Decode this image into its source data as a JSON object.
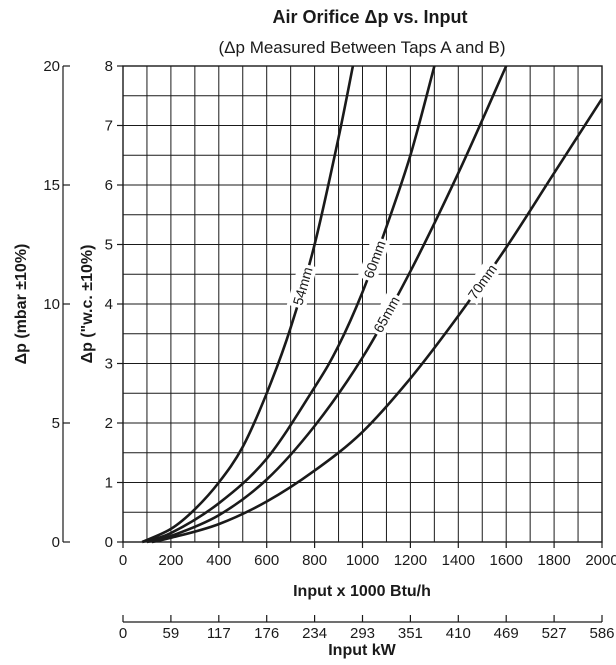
{
  "chart_data": {
    "type": "line",
    "title": "Air Orifice Δp vs. Input",
    "subtitle": "(Δp Measured Between Taps A and B)",
    "xlabel": "Input x 1000 Btu/h",
    "ylabel": "Δp (\"w.c. ±10%)",
    "xlim": [
      0,
      2000
    ],
    "ylim": [
      0,
      8
    ],
    "grid": true,
    "x_ticks": [
      "0",
      "200",
      "400",
      "600",
      "800",
      "1000",
      "1200",
      "1400",
      "1600",
      "1800",
      "2000"
    ],
    "y_ticks": [
      "0",
      "1",
      "2",
      "3",
      "4",
      "5",
      "6",
      "7",
      "8"
    ],
    "secondary_y": {
      "label": "Δp (mbar ±10%)",
      "range": [
        0,
        20
      ],
      "ticks": [
        "0",
        "5",
        "10",
        "15",
        "20"
      ]
    },
    "secondary_x": {
      "label": "Input kW",
      "ticks": [
        "0",
        "59",
        "117",
        "176",
        "234",
        "293",
        "351",
        "410",
        "469",
        "527",
        "586"
      ]
    },
    "series": [
      {
        "name": "54mm",
        "x": [
          80,
          200,
          300,
          400,
          500,
          600,
          700,
          800,
          900,
          960
        ],
        "y": [
          0.0,
          0.22,
          0.55,
          1.0,
          1.6,
          2.5,
          3.6,
          5.0,
          6.8,
          8.0
        ]
      },
      {
        "name": "60mm",
        "x": [
          80,
          200,
          400,
          600,
          800,
          900,
          1000,
          1100,
          1200,
          1300
        ],
        "y": [
          0.0,
          0.15,
          0.65,
          1.4,
          2.6,
          3.3,
          4.2,
          5.3,
          6.5,
          8.0
        ]
      },
      {
        "name": "65mm",
        "x": [
          100,
          200,
          400,
          600,
          800,
          1000,
          1200,
          1400,
          1600
        ],
        "y": [
          0.0,
          0.1,
          0.45,
          1.05,
          1.95,
          3.1,
          4.55,
          6.2,
          8.0
        ]
      },
      {
        "name": "70mm",
        "x": [
          120,
          200,
          400,
          600,
          800,
          1000,
          1200,
          1400,
          1600,
          1800,
          2000
        ],
        "y": [
          0.0,
          0.07,
          0.3,
          0.68,
          1.2,
          1.85,
          2.75,
          3.8,
          4.95,
          6.2,
          7.45
        ]
      }
    ]
  }
}
